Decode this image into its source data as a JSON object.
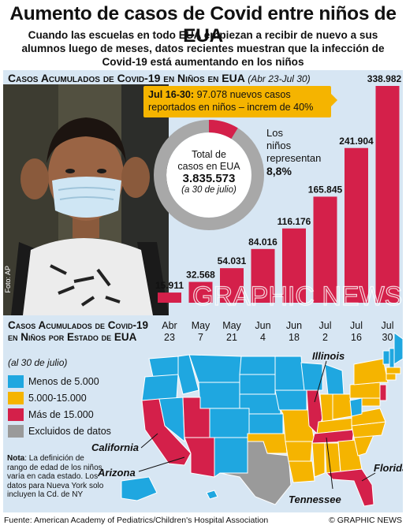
{
  "header": {
    "title": "Aumento de casos de Covid entre niños de EUA",
    "subtitle": "Cuando las escuelas en todo EUA empiezan a recibir de nuevo a sus alumnos luego de meses, datos recientes muestran que la infección de Covid-19 está aumentando en los niños"
  },
  "bar_section": {
    "title": "Casos Acumulados de Covid-19 en Niños en EUA",
    "range": "(Abr 23-Jul 30)",
    "photo_credit": "Foto: AP",
    "callout": {
      "bold": "Jul 16-30:",
      "text": " 97.078 nuevos casos reportados en niños – increm de 40%"
    },
    "donut": {
      "line1": "Total de",
      "line2": "casos en EUA",
      "total": "3.835.573",
      "date": "(a 30 de julio)",
      "kids_share": 8.8,
      "kids_label_1": "Los",
      "kids_label_2": "niños",
      "kids_label_3": "representan",
      "kids_pct": "8,8%"
    },
    "watermark": "GRAPHIC NEWS"
  },
  "chart_data": {
    "type": "bar",
    "title": "Casos Acumulados de Covid-19 en Niños en EUA",
    "categories": [
      "Abr 23",
      "May 7",
      "May 21",
      "Jun 4",
      "Jun 18",
      "Jul 2",
      "Jul 16",
      "Jul 30"
    ],
    "values": [
      15911,
      32568,
      54031,
      84016,
      116176,
      165845,
      241904,
      338982
    ],
    "value_labels": [
      "15.911",
      "32.568",
      "54.031",
      "84.016",
      "116.176",
      "165.845",
      "241.904",
      "338.982"
    ],
    "ylim": [
      0,
      338982
    ],
    "bar_color": "#d4204a",
    "grid": false
  },
  "map_section": {
    "title": "Casos Acumulados de Covid-19 en Niños por Estado de EUA",
    "date": "(al 30 de julio)",
    "legend": [
      {
        "label": "Menos de 5.000",
        "color": "#1fa7e0"
      },
      {
        "label": "5.000-15.000",
        "color": "#f5b400"
      },
      {
        "label": "Más de 15.000",
        "color": "#d4204a"
      },
      {
        "label": "Excluidos de datos",
        "color": "#9a9a9a"
      }
    ],
    "note_bold": "Nota",
    "note_text": ": La definición de rango de edad de los niños varía en cada estado. Los datos para Nueva York solo incluyen la Cd. de NY",
    "labels": {
      "illinois": "Illinois",
      "california": "California",
      "arizona": "Arizona",
      "florida": "Florida",
      "tennessee": "Tennessee"
    }
  },
  "footer": {
    "source": "Fuente: American Academy of Pediatrics/Children's Hospital Association",
    "brand": "© GRAPHIC NEWS"
  }
}
